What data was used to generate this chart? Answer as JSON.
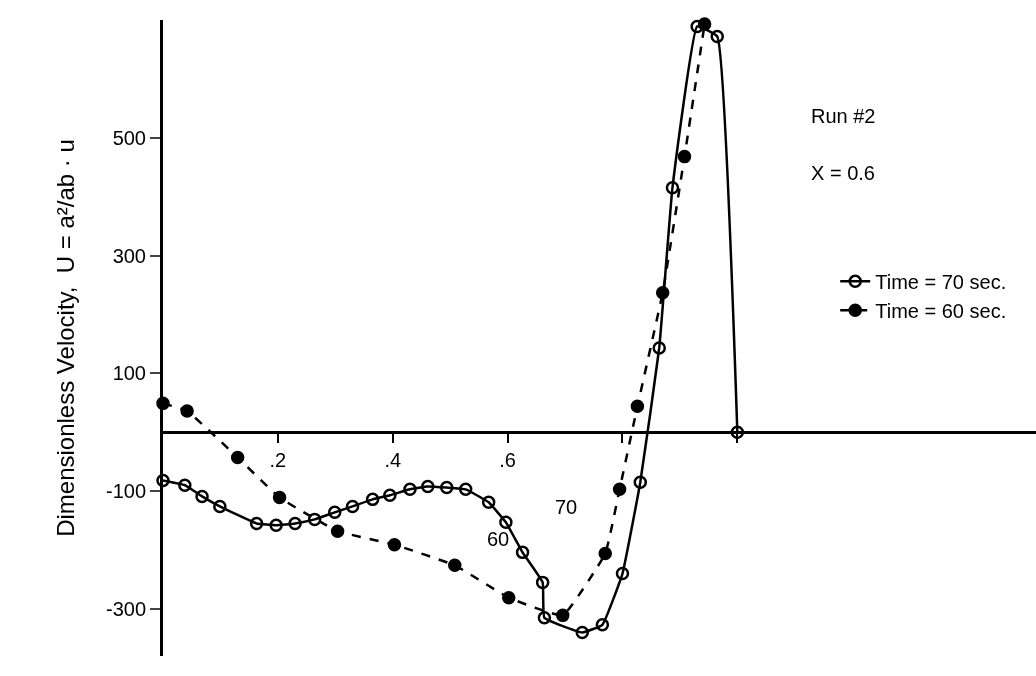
{
  "chart_data": {
    "type": "line",
    "ylabel": "Dimensionless Velocity,  U = a²/ab · u",
    "annotations": [
      "Run #2",
      "X = 0.6",
      "70",
      "60"
    ],
    "xlim": [
      0,
      1.52
    ],
    "ylim": [
      -380,
      700
    ],
    "xticks": [
      {
        "value": 0.2,
        "label": ".2"
      },
      {
        "value": 0.4,
        "label": ".4"
      },
      {
        "value": 0.6,
        "label": ".6"
      },
      {
        "value": 0.8,
        "label": null
      },
      {
        "value": 1,
        "label": null
      }
    ],
    "yticks": [
      500,
      300,
      100,
      -100,
      -300
    ],
    "legend": "right",
    "series": [
      {
        "name": "Time = 70 sec.",
        "color": "#000000",
        "marker": "circle-open",
        "line_style": "solid",
        "x": [
          0,
          0.038,
          0.068,
          0.099,
          0.163,
          0.197,
          0.23,
          0.264,
          0.299,
          0.33,
          0.365,
          0.395,
          0.43,
          0.461,
          0.494,
          0.527,
          0.567,
          0.597,
          0.626,
          0.661,
          0.664,
          0.73,
          0.765,
          0.8,
          0.831,
          0.864,
          0.887,
          0.93,
          0.965,
          1.0
        ],
        "values": [
          -82,
          -90,
          -109,
          -126,
          -155,
          -158,
          -155,
          -148,
          -136,
          -126,
          -114,
          -107,
          -97,
          -92,
          -94,
          -97,
          -119,
          -153,
          -204,
          -255,
          -315,
          -340,
          -327,
          -240,
          -85,
          143,
          415,
          689,
          672,
          0
        ]
      },
      {
        "name": "Time = 60 sec.",
        "color": "#000000",
        "marker": "circle",
        "line_style": "dashed",
        "x": [
          0,
          0.042,
          0.13,
          0.203,
          0.304,
          0.403,
          0.508,
          0.602,
          0.696,
          0.77,
          0.795,
          0.826,
          0.87,
          0.908,
          0.943
        ],
        "values": [
          49,
          36,
          -43,
          -111,
          -168,
          -191,
          -226,
          -281,
          -311,
          -206,
          -97,
          44,
          237,
          468,
          693
        ]
      }
    ]
  }
}
